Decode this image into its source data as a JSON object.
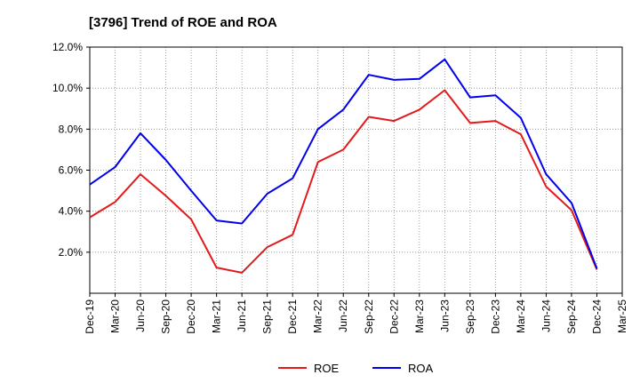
{
  "chart_data": {
    "type": "line",
    "title": "[3796]  Trend of ROE and ROA",
    "xlabel": "",
    "ylabel": "",
    "categories": [
      "Dec-19",
      "Mar-20",
      "Jun-20",
      "Sep-20",
      "Dec-20",
      "Mar-21",
      "Jun-21",
      "Sep-21",
      "Dec-21",
      "Mar-22",
      "Jun-22",
      "Sep-22",
      "Dec-22",
      "Mar-23",
      "Jun-23",
      "Sep-23",
      "Dec-23",
      "Mar-24",
      "Jun-24",
      "Sep-24",
      "Dec-24",
      "Mar-25"
    ],
    "y_ticks": [
      "2.0%",
      "4.0%",
      "6.0%",
      "8.0%",
      "10.0%",
      "12.0%"
    ],
    "y_tick_values": [
      2,
      4,
      6,
      8,
      10,
      12
    ],
    "ylim": [
      0,
      12
    ],
    "grid": true,
    "legend_position": "bottom-center",
    "series": [
      {
        "name": "ROE",
        "color": "#e31a1c",
        "values": [
          3.7,
          4.45,
          5.8,
          4.75,
          3.6,
          1.25,
          1.0,
          2.25,
          2.85,
          6.4,
          7.0,
          8.6,
          8.4,
          8.95,
          9.9,
          8.3,
          8.4,
          7.75,
          5.2,
          4.05,
          1.15,
          null
        ]
      },
      {
        "name": "ROA",
        "color": "#0000ee",
        "values": [
          5.3,
          6.15,
          7.8,
          6.5,
          5.0,
          3.55,
          3.4,
          4.85,
          5.6,
          8.0,
          8.95,
          10.65,
          10.4,
          10.45,
          11.4,
          9.55,
          9.65,
          8.55,
          5.8,
          4.4,
          1.2,
          null
        ]
      }
    ]
  }
}
